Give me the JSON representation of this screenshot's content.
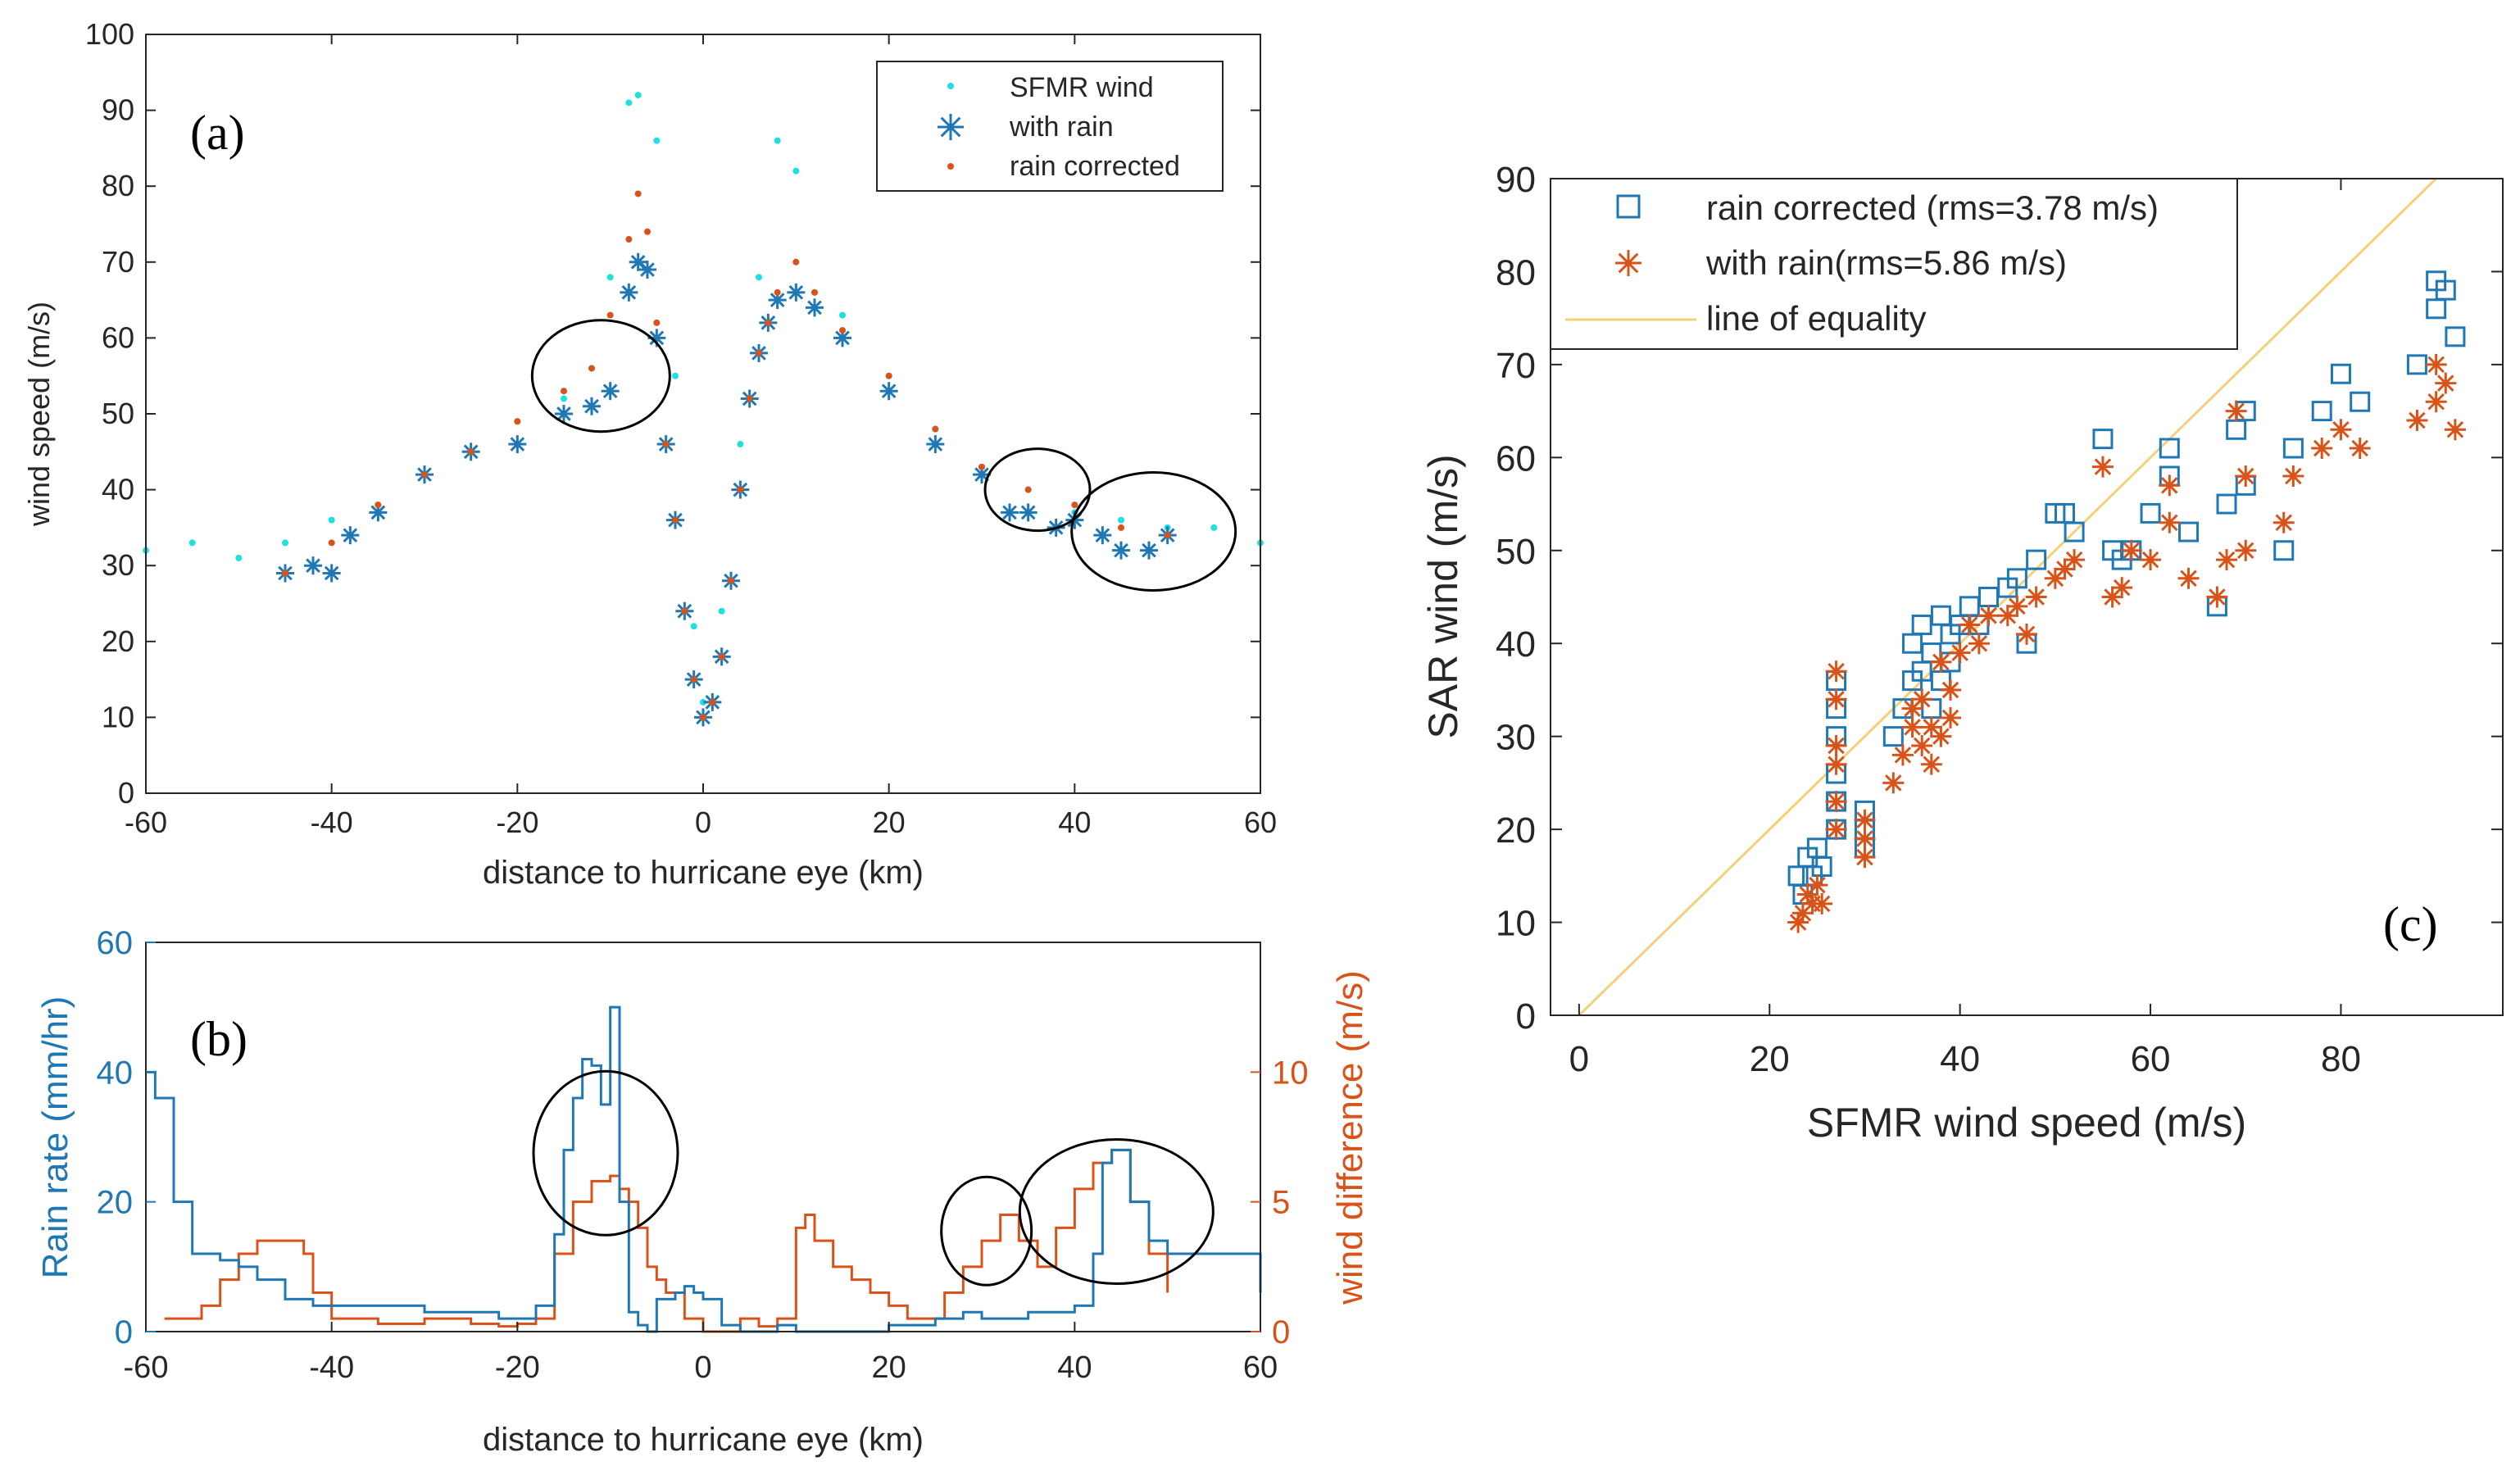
{
  "colors": {
    "sfmr": "#1FE0E0",
    "with_rain": "#1F77B4",
    "rain_corrected": "#D95319",
    "equality": "#EDB120",
    "axis": "#262626"
  },
  "chart_data": [
    {
      "id": "a",
      "type": "scatter",
      "panel_label": "(a)",
      "xlabel": "distance to hurricane eye (km)",
      "ylabel": "wind speed (m/s)",
      "xlim": [
        -60,
        60
      ],
      "ylim": [
        0,
        100
      ],
      "xticks": [
        "-60",
        "-40",
        "-20",
        "0",
        "20",
        "40",
        "60"
      ],
      "yticks": [
        "0",
        "10",
        "20",
        "30",
        "40",
        "50",
        "60",
        "70",
        "80",
        "90",
        "100"
      ],
      "legend": [
        "SFMR wind",
        "with rain",
        "rain corrected"
      ],
      "legend_position": "top-right",
      "series": [
        {
          "name": "SFMR wind",
          "marker": "dot",
          "x": [
            -60,
            -55,
            -50,
            -45,
            -40,
            -35,
            -30,
            -25,
            -20,
            -15,
            -12,
            -10,
            -8,
            -7,
            -5,
            -3,
            -1,
            0,
            2,
            4,
            6,
            8,
            10,
            12,
            15,
            20,
            25,
            30,
            35,
            40,
            45,
            50,
            55,
            60
          ],
          "y": [
            32,
            33,
            31,
            33,
            36,
            38,
            42,
            45,
            49,
            52,
            56,
            68,
            91,
            92,
            86,
            55,
            22,
            12,
            24,
            46,
            68,
            86,
            82,
            66,
            63,
            55,
            48,
            43,
            40,
            37,
            36,
            35,
            35,
            33
          ]
        },
        {
          "name": "with rain",
          "marker": "asterisk",
          "x": [
            -45,
            -42,
            -40,
            -38,
            -35,
            -30,
            -25,
            -20,
            -15,
            -12,
            -10,
            -8,
            -7,
            -6,
            -5,
            -4,
            -3,
            -2,
            -1,
            0,
            1,
            2,
            3,
            4,
            5,
            6,
            7,
            8,
            10,
            12,
            15,
            20,
            25,
            30,
            33,
            35,
            38,
            40,
            43,
            45,
            48,
            50
          ],
          "y": [
            29,
            30,
            29,
            34,
            37,
            42,
            45,
            46,
            50,
            51,
            53,
            66,
            70,
            69,
            60,
            46,
            36,
            24,
            15,
            10,
            12,
            18,
            28,
            40,
            52,
            58,
            62,
            65,
            66,
            64,
            60,
            53,
            46,
            42,
            37,
            37,
            35,
            36,
            34,
            32,
            32,
            34
          ]
        },
        {
          "name": "rain corrected",
          "marker": "dot",
          "x": [
            -45,
            -40,
            -35,
            -30,
            -25,
            -20,
            -15,
            -12,
            -10,
            -8,
            -7,
            -6,
            -5,
            -4,
            -3,
            -2,
            -1,
            0,
            1,
            2,
            3,
            4,
            5,
            6,
            7,
            8,
            10,
            12,
            15,
            20,
            25,
            30,
            35,
            40,
            45,
            50
          ],
          "y": [
            29,
            33,
            38,
            42,
            45,
            49,
            53,
            56,
            63,
            73,
            79,
            74,
            62,
            46,
            36,
            24,
            15,
            10,
            12,
            18,
            28,
            40,
            52,
            58,
            62,
            66,
            70,
            66,
            61,
            55,
            48,
            43,
            40,
            38,
            35,
            34
          ]
        }
      ],
      "annotations": [
        "ellipse at x=-11 y=55",
        "ellipse at x=36 y=40",
        "ellipse at x=48 y=35"
      ]
    },
    {
      "id": "b",
      "type": "line",
      "panel_label": "(b)",
      "xlabel": "distance to hurricane eye (km)",
      "ylabel_left": "Rain rate (mm/hr)",
      "ylabel_right": "wind difference (m/s)",
      "xlim": [
        -60,
        60
      ],
      "ylim_left": [
        0,
        60
      ],
      "ylim_right": [
        0,
        15
      ],
      "xticks": [
        "-60",
        "-40",
        "-20",
        "0",
        "20",
        "40",
        "60"
      ],
      "yticks_left": [
        "0",
        "20",
        "40",
        "60"
      ],
      "yticks_right": [
        "0",
        "5",
        "10"
      ],
      "series": [
        {
          "name": "Rain rate",
          "axis": "left",
          "x": [
            -60,
            -59,
            -57,
            -55,
            -52,
            -50,
            -48,
            -45,
            -42,
            -40,
            -35,
            -30,
            -25,
            -22,
            -20,
            -18,
            -16,
            -15,
            -14,
            -13,
            -12,
            -11,
            -10,
            -9,
            -8,
            -7,
            -6,
            -5,
            -3,
            -2,
            -1,
            0,
            2,
            4,
            6,
            8,
            10,
            15,
            20,
            25,
            28,
            30,
            35,
            38,
            40,
            42,
            43,
            44,
            46,
            48,
            50,
            55,
            60
          ],
          "y": [
            40,
            36,
            20,
            12,
            11,
            10,
            8,
            5,
            4,
            4,
            4,
            3,
            3,
            2,
            2,
            4,
            15,
            28,
            36,
            42,
            41,
            35,
            50,
            20,
            3,
            1,
            0,
            5,
            6,
            7,
            6,
            5,
            1,
            0,
            0,
            1,
            0,
            0,
            1,
            2,
            3,
            2,
            3,
            3,
            4,
            12,
            26,
            28,
            20,
            14,
            12,
            12,
            6
          ]
        },
        {
          "name": "wind difference",
          "axis": "right",
          "x": [
            -58,
            -56,
            -54,
            -52,
            -50,
            -48,
            -45,
            -43,
            -42,
            -40,
            -35,
            -30,
            -25,
            -22,
            -20,
            -18,
            -16,
            -14,
            -12,
            -10,
            -9,
            -8,
            -7,
            -6,
            -5,
            -4,
            -2,
            0,
            4,
            6,
            8,
            10,
            11,
            12,
            14,
            16,
            18,
            20,
            22,
            24,
            26,
            28,
            30,
            32,
            34,
            36,
            38,
            40,
            42,
            44,
            46,
            48,
            50
          ],
          "y": [
            0.5,
            0.5,
            1,
            2,
            3,
            3.5,
            3.5,
            3,
            1.5,
            0.5,
            0.3,
            0.5,
            0.3,
            0.2,
            0.3,
            0.5,
            3,
            5,
            5.8,
            6,
            5.5,
            5,
            4,
            2.5,
            2,
            1.5,
            0.5,
            0,
            0.5,
            0.2,
            0.5,
            4,
            4.5,
            3.5,
            2.5,
            2,
            1.5,
            1,
            0.5,
            0.5,
            1.5,
            2.5,
            3.5,
            4.5,
            3.5,
            2.5,
            4,
            5.5,
            6.5,
            7,
            5,
            3,
            1.5
          ]
        }
      ],
      "annotations": [
        "circle at x=-11 y=7",
        "circle at x=30 y=4",
        "ellipse at x=44 y=6"
      ]
    },
    {
      "id": "c",
      "type": "scatter",
      "panel_label": "(c)",
      "xlabel": "SFMR wind speed (m/s)",
      "ylabel": "SAR wind (m/s)",
      "xlim": [
        -3,
        97
      ],
      "ylim": [
        0,
        90
      ],
      "xticks": [
        "0",
        "20",
        "40",
        "60",
        "80"
      ],
      "yticks": [
        "0",
        "10",
        "20",
        "30",
        "40",
        "50",
        "60",
        "70",
        "80",
        "90"
      ],
      "legend": [
        "rain corrected (rms=3.78 m/s)",
        "with rain(rms=5.86 m/s)",
        "line of equality"
      ],
      "legend_position": "top-left",
      "series": [
        {
          "name": "rain corrected (rms=3.78 m/s)",
          "marker": "square",
          "x": [
            23,
            23.5,
            24,
            24.5,
            25,
            25.5,
            27,
            27,
            27,
            27,
            27,
            27,
            30,
            30,
            30,
            33,
            34,
            35,
            35,
            36,
            36,
            37,
            37,
            38,
            38,
            39,
            39,
            40,
            41,
            42,
            43,
            45,
            46,
            47,
            48,
            50,
            51,
            52,
            55,
            56,
            57,
            58,
            60,
            62,
            62,
            64,
            67,
            68,
            69,
            70,
            70,
            74,
            75,
            78,
            80,
            82,
            88,
            90,
            90,
            91,
            92
          ],
          "y": [
            15,
            13,
            17,
            15,
            18,
            16,
            36,
            33,
            30,
            26,
            23,
            20,
            22,
            20,
            18,
            30,
            33,
            36,
            40,
            37,
            42,
            39,
            33,
            43,
            36,
            41,
            38,
            42,
            44,
            42,
            45,
            46,
            47,
            40,
            49,
            54,
            54,
            52,
            62,
            50,
            49,
            50,
            54,
            61,
            58,
            52,
            44,
            55,
            63,
            57,
            65,
            50,
            61,
            65,
            69,
            66,
            70,
            79,
            76,
            78,
            73
          ]
        },
        {
          "name": "with rain(rms=5.86 m/s)",
          "marker": "asterisk",
          "x": [
            23,
            23.5,
            24,
            24.5,
            25,
            25.5,
            27,
            27,
            27,
            27,
            27,
            27,
            30,
            30,
            30,
            33,
            34,
            35,
            35,
            36,
            36,
            37,
            37,
            38,
            38,
            39,
            39,
            40,
            41,
            42,
            43,
            45,
            46,
            47,
            48,
            50,
            51,
            52,
            55,
            56,
            57,
            58,
            60,
            62,
            62,
            64,
            67,
            68,
            69,
            70,
            70,
            74,
            75,
            78,
            80,
            82,
            88,
            90,
            90,
            91,
            92
          ],
          "y": [
            10,
            11,
            13,
            12,
            14,
            12,
            37,
            34,
            29,
            27,
            23,
            20,
            21,
            19,
            17,
            25,
            28,
            31,
            33,
            29,
            34,
            31,
            27,
            38,
            30,
            35,
            32,
            39,
            42,
            40,
            43,
            43,
            44,
            41,
            45,
            47,
            48,
            49,
            59,
            45,
            46,
            50,
            49,
            57,
            53,
            47,
            45,
            49,
            65,
            50,
            58,
            53,
            58,
            61,
            63,
            61,
            64,
            70,
            66,
            68,
            63
          ]
        },
        {
          "name": "line of equality",
          "marker": "line",
          "x": [
            0,
            90
          ],
          "y": [
            0,
            90
          ]
        }
      ]
    }
  ]
}
